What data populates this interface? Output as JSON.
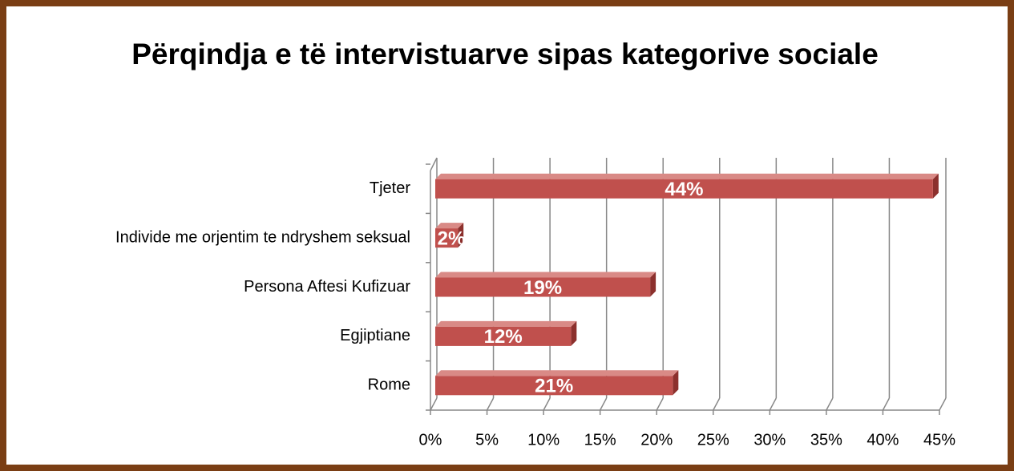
{
  "chart_data": {
    "type": "bar3d_horizontal",
    "title": "Përqindja e të intervistuarve sipas kategorive sociale",
    "categories": [
      "Tjeter",
      "Individe me orjentim te ndryshem seksual",
      "Persona Aftesi Kufizuar",
      "Egjiptiane",
      "Rome"
    ],
    "values": [
      44,
      2,
      19,
      12,
      21
    ],
    "value_labels": [
      "44%",
      "2%",
      "19%",
      "12%",
      "21%"
    ],
    "color": "#c0504d",
    "xlim": [
      0,
      45
    ],
    "xticks": [
      {
        "value": 0,
        "label": "0%"
      },
      {
        "value": 5,
        "label": "5%"
      },
      {
        "value": 10,
        "label": "10%"
      },
      {
        "value": 15,
        "label": "15%"
      },
      {
        "value": 20,
        "label": "20%"
      },
      {
        "value": 25,
        "label": "25%"
      },
      {
        "value": 30,
        "label": "30%"
      },
      {
        "value": 35,
        "label": "35%"
      },
      {
        "value": 40,
        "label": "40%"
      },
      {
        "value": 45,
        "label": "45%"
      }
    ],
    "grid": true
  }
}
